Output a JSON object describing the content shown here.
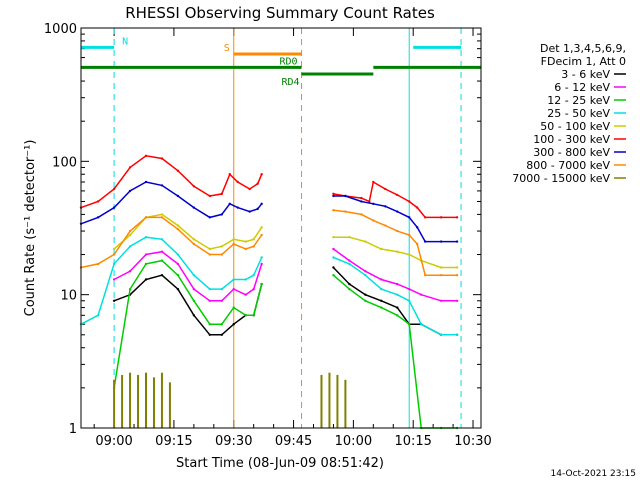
{
  "chart_data": {
    "type": "line",
    "title": "RHESSI Observing Summary Count Rates",
    "xlabel": "Start Time (08-Jun-09 08:51:42)",
    "ylabel": "Count Rate (s⁻¹ detector⁻¹)",
    "x_ticks": [
      "09:00",
      "09:15",
      "09:30",
      "09:45",
      "10:00",
      "10:15",
      "10:30"
    ],
    "y_ticks": [
      "1",
      "10",
      "100",
      "1000"
    ],
    "y_scale": "log",
    "ylim": [
      1,
      1000
    ],
    "xlim": [
      "08:51:42",
      "10:32:00"
    ],
    "legend": {
      "header": [
        "Det 1,3,4,5,6,9,",
        "FDecim 1, Att 0"
      ],
      "placement": "right"
    },
    "timestamp": "14-Oct-2021 23:15",
    "series": [
      {
        "name": "3 - 6 keV",
        "color": "#000000",
        "times": [
          "09:00",
          "09:04",
          "09:08",
          "09:12",
          "09:16",
          "09:20",
          "09:24",
          "09:27",
          "09:30",
          "09:33",
          "09:35",
          "09:37",
          "09:55",
          "09:59",
          "10:03",
          "10:07",
          "10:11",
          "10:14",
          "10:17",
          "10:22",
          "10:26"
        ],
        "values": [
          9,
          10,
          13,
          14,
          11,
          7,
          5,
          5,
          6,
          7,
          7,
          12,
          16,
          12,
          10,
          9,
          8,
          6,
          6,
          5,
          5
        ]
      },
      {
        "name": "6 - 12 keV",
        "color": "#ff00ff",
        "times": [
          "09:00",
          "09:04",
          "09:08",
          "09:12",
          "09:16",
          "09:20",
          "09:24",
          "09:27",
          "09:30",
          "09:33",
          "09:35",
          "09:37",
          "09:55",
          "09:59",
          "10:03",
          "10:07",
          "10:11",
          "10:14",
          "10:17",
          "10:22",
          "10:26"
        ],
        "values": [
          13,
          15,
          20,
          21,
          17,
          11,
          9,
          9,
          11,
          10,
          11,
          17,
          22,
          18,
          15,
          13,
          12,
          11,
          10,
          9,
          9
        ]
      },
      {
        "name": "12 - 25 keV",
        "color": "#00cc00",
        "times": [
          "09:00",
          "09:04",
          "09:08",
          "09:12",
          "09:16",
          "09:20",
          "09:24",
          "09:27",
          "09:30",
          "09:33",
          "09:35",
          "09:37",
          "09:55",
          "09:59",
          "10:03",
          "10:07",
          "10:11",
          "10:14",
          "10:17",
          "10:22",
          "10:26"
        ],
        "values": [
          2,
          11,
          17,
          18,
          14,
          9,
          6,
          6,
          8,
          7,
          7,
          12,
          14,
          11,
          9,
          8,
          7,
          6,
          1,
          1,
          1
        ]
      },
      {
        "name": "25 - 50 keV",
        "color": "#00e0e0",
        "times": [
          "08:51:42",
          "08:56",
          "09:00",
          "09:04",
          "09:08",
          "09:12",
          "09:16",
          "09:20",
          "09:24",
          "09:27",
          "09:30",
          "09:33",
          "09:35",
          "09:37",
          "09:55",
          "09:59",
          "10:03",
          "10:07",
          "10:11",
          "10:14",
          "10:17",
          "10:22",
          "10:26"
        ],
        "values": [
          6,
          7,
          17,
          23,
          27,
          26,
          20,
          14,
          11,
          11,
          13,
          13,
          14,
          19,
          19,
          17,
          14,
          11,
          10,
          9,
          6,
          5,
          5
        ]
      },
      {
        "name": "50 - 100 keV",
        "color": "#cccc00",
        "times": [
          "09:00",
          "09:04",
          "09:08",
          "09:12",
          "09:16",
          "09:20",
          "09:24",
          "09:27",
          "09:30",
          "09:33",
          "09:35",
          "09:37",
          "09:55",
          "09:59",
          "10:03",
          "10:07",
          "10:11",
          "10:14",
          "10:17",
          "10:22",
          "10:26"
        ],
        "values": [
          22,
          28,
          38,
          40,
          33,
          26,
          22,
          23,
          26,
          25,
          26,
          32,
          27,
          27,
          25,
          22,
          21,
          20,
          18,
          16,
          16
        ]
      },
      {
        "name": "100 - 300 keV",
        "color": "#ff0000",
        "times": [
          "08:51:42",
          "08:56",
          "09:00",
          "09:04",
          "09:08",
          "09:12",
          "09:16",
          "09:20",
          "09:24",
          "09:27",
          "09:29",
          "09:31",
          "09:34",
          "09:36",
          "09:37",
          "09:55",
          "09:58",
          "10:02",
          "10:04",
          "10:05",
          "10:08",
          "10:11",
          "10:14",
          "10:16",
          "10:18",
          "10:22",
          "10:26"
        ],
        "values": [
          45,
          50,
          62,
          90,
          110,
          105,
          85,
          65,
          55,
          57,
          80,
          70,
          62,
          68,
          80,
          57,
          55,
          53,
          50,
          70,
          62,
          56,
          50,
          45,
          38,
          38,
          38
        ]
      },
      {
        "name": "300 - 800 keV",
        "color": "#0000cc",
        "times": [
          "08:51:42",
          "08:56",
          "09:00",
          "09:04",
          "09:08",
          "09:12",
          "09:16",
          "09:20",
          "09:24",
          "09:27",
          "09:29",
          "09:31",
          "09:34",
          "09:36",
          "09:37",
          "09:55",
          "09:58",
          "10:02",
          "10:05",
          "10:08",
          "10:11",
          "10:14",
          "10:16",
          "10:18",
          "10:22",
          "10:26"
        ],
        "values": [
          34,
          38,
          45,
          60,
          70,
          66,
          55,
          45,
          38,
          40,
          48,
          45,
          42,
          44,
          48,
          55,
          55,
          50,
          48,
          46,
          42,
          38,
          32,
          25,
          25,
          25
        ]
      },
      {
        "name": "800 - 7000 keV",
        "color": "#ff8800",
        "times": [
          "08:51:42",
          "08:56",
          "09:00",
          "09:04",
          "09:08",
          "09:12",
          "09:16",
          "09:20",
          "09:24",
          "09:27",
          "09:30",
          "09:33",
          "09:35",
          "09:37",
          "09:55",
          "09:58",
          "10:02",
          "10:05",
          "10:08",
          "10:11",
          "10:14",
          "10:16",
          "10:18",
          "10:22",
          "10:26"
        ],
        "values": [
          16,
          17,
          20,
          30,
          38,
          38,
          31,
          24,
          20,
          20,
          24,
          22,
          23,
          28,
          43,
          42,
          40,
          36,
          33,
          30,
          28,
          24,
          14,
          14,
          14
        ]
      },
      {
        "name": "7000 - 15000 keV",
        "color": "#808000",
        "times": [
          "09:00",
          "09:02",
          "09:04",
          "09:06",
          "09:08",
          "09:10",
          "09:12",
          "09:14",
          "09:52",
          "09:54",
          "09:56",
          "09:58"
        ],
        "values": [
          2.3,
          2.5,
          2.6,
          2.5,
          2.6,
          2.4,
          2.6,
          2.2,
          2.5,
          2.6,
          2.5,
          2.3
        ]
      }
    ],
    "annotations": [
      {
        "label": "N",
        "color": "#00e0e0",
        "value": 1.4,
        "from": "08:51:42",
        "to": "09:00"
      },
      {
        "label": "",
        "color": "#00e0e0",
        "value": 1.4,
        "from": "10:15",
        "to": "10:27"
      },
      {
        "label": "S",
        "color": "#ff8800",
        "value": 1.35,
        "from": "09:30",
        "to": "09:47"
      },
      {
        "label": "RD0",
        "color": "#008000",
        "value": 1.25,
        "from": "08:51:42",
        "to": "09:47"
      },
      {
        "label": "RD4",
        "color": "#008000",
        "value": 1.2,
        "from": "09:47",
        "to": "10:05"
      },
      {
        "label": "",
        "color": "#008000",
        "value": 1.25,
        "from": "10:05",
        "to": "10:32:00"
      }
    ],
    "vertical_markers": [
      {
        "time": "09:00",
        "color": "#00e0e0",
        "style": "dashed"
      },
      {
        "time": "10:14",
        "color": "#00e0e0",
        "style": "solid"
      },
      {
        "time": "10:27",
        "color": "#00e0e0",
        "style": "dashed"
      },
      {
        "time": "09:30",
        "color": "#ff8800",
        "style": "solid"
      },
      {
        "time": "09:47",
        "color": "#ff8800",
        "style": "dashed"
      }
    ]
  }
}
